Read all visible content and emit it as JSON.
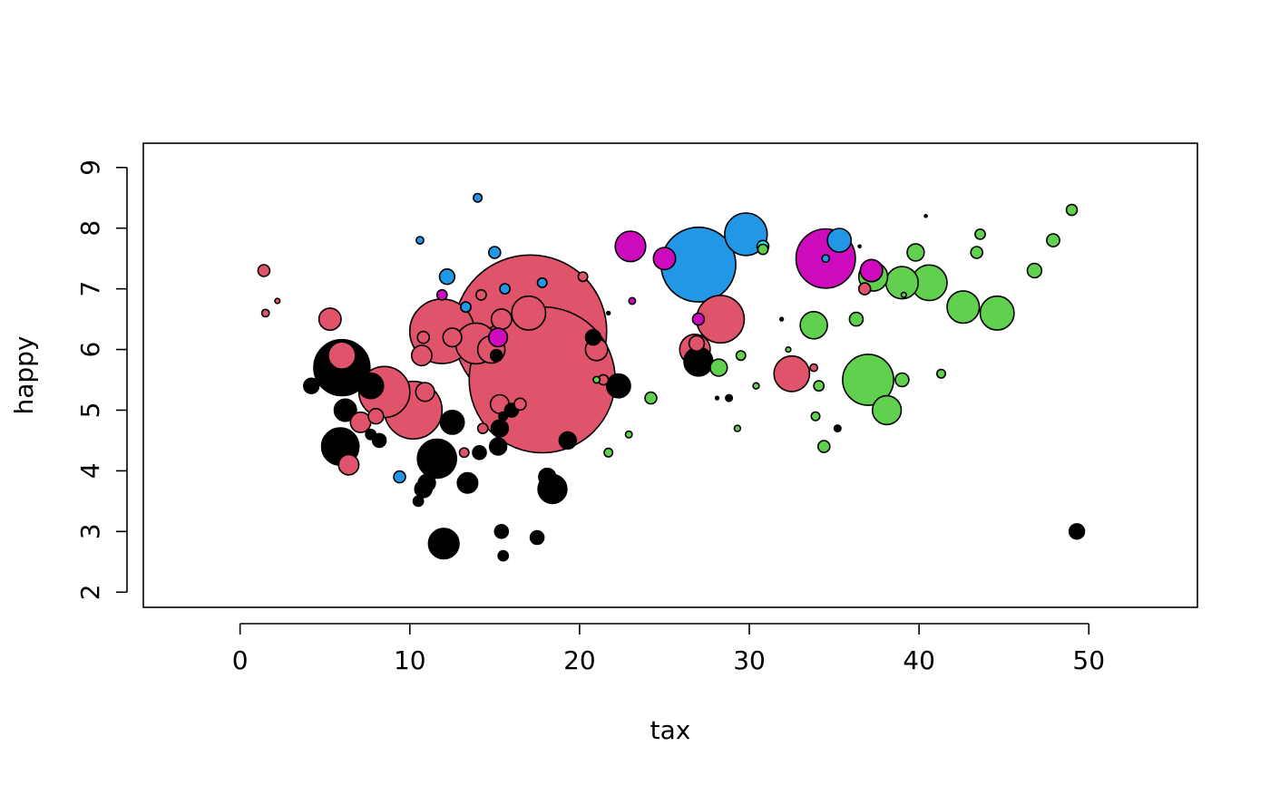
{
  "chart_data": {
    "type": "scatter",
    "title": "",
    "xlabel": "tax",
    "ylabel": "happy",
    "xlim": [
      -5.7,
      56.4
    ],
    "ylim": [
      1.75,
      9.4
    ],
    "xticks": [
      0,
      10,
      20,
      30,
      40,
      50
    ],
    "yticks": [
      2,
      3,
      4,
      5,
      6,
      7,
      8,
      9
    ],
    "grid": false,
    "legend": "none",
    "colors": {
      "black": "#000000",
      "red": "#DF536B",
      "green": "#61D04F",
      "blue": "#2297E6",
      "magenta": "#CD0BBC",
      "cyan": "#28E2E5"
    },
    "size_unit": "bubble radius in tax units",
    "points": [
      {
        "x": 1.4,
        "y": 7.3,
        "r": 0.35,
        "color": "red"
      },
      {
        "x": 2.2,
        "y": 6.8,
        "r": 0.15,
        "color": "red"
      },
      {
        "x": 1.5,
        "y": 6.6,
        "r": 0.22,
        "color": "red"
      },
      {
        "x": 5.3,
        "y": 6.5,
        "r": 0.65,
        "color": "red"
      },
      {
        "x": 6.0,
        "y": 5.9,
        "r": 0.8,
        "color": "red"
      },
      {
        "x": 8.5,
        "y": 5.3,
        "r": 1.5,
        "color": "red"
      },
      {
        "x": 10.2,
        "y": 5.0,
        "r": 1.7,
        "color": "red"
      },
      {
        "x": 10.9,
        "y": 5.3,
        "r": 0.55,
        "color": "red"
      },
      {
        "x": 7.1,
        "y": 4.8,
        "r": 0.6,
        "color": "red"
      },
      {
        "x": 8.0,
        "y": 4.9,
        "r": 0.45,
        "color": "red"
      },
      {
        "x": 6.4,
        "y": 4.1,
        "r": 0.6,
        "color": "red"
      },
      {
        "x": 10.7,
        "y": 5.9,
        "r": 0.6,
        "color": "red"
      },
      {
        "x": 10.8,
        "y": 6.2,
        "r": 0.35,
        "color": "red"
      },
      {
        "x": 11.9,
        "y": 6.3,
        "r": 1.9,
        "color": "red"
      },
      {
        "x": 12.5,
        "y": 6.2,
        "r": 0.55,
        "color": "red"
      },
      {
        "x": 13.9,
        "y": 6.1,
        "r": 1.2,
        "color": "red"
      },
      {
        "x": 14.8,
        "y": 6.0,
        "r": 0.8,
        "color": "red"
      },
      {
        "x": 14.2,
        "y": 6.9,
        "r": 0.3,
        "color": "red"
      },
      {
        "x": 15.4,
        "y": 6.5,
        "r": 0.6,
        "color": "red"
      },
      {
        "x": 17.1,
        "y": 6.3,
        "r": 4.5,
        "color": "red"
      },
      {
        "x": 17.8,
        "y": 5.5,
        "r": 4.3,
        "color": "red"
      },
      {
        "x": 17.0,
        "y": 6.6,
        "r": 1.0,
        "color": "red"
      },
      {
        "x": 15.3,
        "y": 5.1,
        "r": 0.55,
        "color": "red"
      },
      {
        "x": 16.5,
        "y": 5.1,
        "r": 0.35,
        "color": "red"
      },
      {
        "x": 14.3,
        "y": 4.7,
        "r": 0.3,
        "color": "red"
      },
      {
        "x": 13.2,
        "y": 4.3,
        "r": 0.28,
        "color": "red"
      },
      {
        "x": 20.2,
        "y": 7.2,
        "r": 0.28,
        "color": "red"
      },
      {
        "x": 21.0,
        "y": 6.0,
        "r": 0.65,
        "color": "red"
      },
      {
        "x": 21.4,
        "y": 5.5,
        "r": 0.3,
        "color": "red"
      },
      {
        "x": 26.8,
        "y": 6.0,
        "r": 0.9,
        "color": "red"
      },
      {
        "x": 26.9,
        "y": 6.1,
        "r": 0.45,
        "color": "red"
      },
      {
        "x": 28.3,
        "y": 6.5,
        "r": 1.4,
        "color": "red"
      },
      {
        "x": 32.5,
        "y": 5.6,
        "r": 1.05,
        "color": "red"
      },
      {
        "x": 33.8,
        "y": 5.7,
        "r": 0.22,
        "color": "red"
      },
      {
        "x": 36.8,
        "y": 7.0,
        "r": 0.35,
        "color": "red"
      },
      {
        "x": 4.2,
        "y": 5.4,
        "r": 0.45,
        "color": "black"
      },
      {
        "x": 6.0,
        "y": 5.7,
        "r": 1.65,
        "color": "black"
      },
      {
        "x": 6.2,
        "y": 5.0,
        "r": 0.65,
        "color": "black"
      },
      {
        "x": 7.7,
        "y": 5.4,
        "r": 0.75,
        "color": "black"
      },
      {
        "x": 5.9,
        "y": 4.4,
        "r": 1.1,
        "color": "black"
      },
      {
        "x": 7.7,
        "y": 4.6,
        "r": 0.3,
        "color": "black"
      },
      {
        "x": 8.2,
        "y": 4.5,
        "r": 0.4,
        "color": "black"
      },
      {
        "x": 12.5,
        "y": 4.8,
        "r": 0.7,
        "color": "black"
      },
      {
        "x": 11.6,
        "y": 4.2,
        "r": 1.15,
        "color": "black"
      },
      {
        "x": 11.0,
        "y": 3.8,
        "r": 0.5,
        "color": "black"
      },
      {
        "x": 10.8,
        "y": 3.7,
        "r": 0.5,
        "color": "black"
      },
      {
        "x": 10.5,
        "y": 3.5,
        "r": 0.3,
        "color": "black"
      },
      {
        "x": 13.4,
        "y": 3.8,
        "r": 0.6,
        "color": "black"
      },
      {
        "x": 14.1,
        "y": 4.3,
        "r": 0.4,
        "color": "black"
      },
      {
        "x": 15.2,
        "y": 4.4,
        "r": 0.5,
        "color": "black"
      },
      {
        "x": 15.3,
        "y": 4.7,
        "r": 0.5,
        "color": "black"
      },
      {
        "x": 15.5,
        "y": 4.9,
        "r": 0.25,
        "color": "black"
      },
      {
        "x": 16.0,
        "y": 5.0,
        "r": 0.4,
        "color": "black"
      },
      {
        "x": 15.1,
        "y": 5.9,
        "r": 0.35,
        "color": "black"
      },
      {
        "x": 12.0,
        "y": 2.8,
        "r": 0.9,
        "color": "black"
      },
      {
        "x": 15.4,
        "y": 3.0,
        "r": 0.4,
        "color": "black"
      },
      {
        "x": 15.5,
        "y": 2.6,
        "r": 0.3,
        "color": "black"
      },
      {
        "x": 17.5,
        "y": 2.9,
        "r": 0.4,
        "color": "black"
      },
      {
        "x": 18.1,
        "y": 3.9,
        "r": 0.5,
        "color": "black"
      },
      {
        "x": 18.4,
        "y": 3.7,
        "r": 0.85,
        "color": "black"
      },
      {
        "x": 19.3,
        "y": 4.5,
        "r": 0.5,
        "color": "black"
      },
      {
        "x": 20.8,
        "y": 6.2,
        "r": 0.45,
        "color": "black"
      },
      {
        "x": 22.3,
        "y": 5.4,
        "r": 0.7,
        "color": "black"
      },
      {
        "x": 21.7,
        "y": 6.6,
        "r": 0.1,
        "color": "black"
      },
      {
        "x": 27.0,
        "y": 5.8,
        "r": 0.85,
        "color": "black"
      },
      {
        "x": 28.1,
        "y": 5.2,
        "r": 0.1,
        "color": "black"
      },
      {
        "x": 28.8,
        "y": 5.2,
        "r": 0.2,
        "color": "black"
      },
      {
        "x": 31.9,
        "y": 6.5,
        "r": 0.1,
        "color": "black"
      },
      {
        "x": 35.2,
        "y": 4.7,
        "r": 0.2,
        "color": "black"
      },
      {
        "x": 36.5,
        "y": 7.7,
        "r": 0.08,
        "color": "black"
      },
      {
        "x": 40.4,
        "y": 8.2,
        "r": 0.08,
        "color": "black"
      },
      {
        "x": 49.3,
        "y": 3.0,
        "r": 0.45,
        "color": "black"
      },
      {
        "x": 11.9,
        "y": 6.9,
        "r": 0.3,
        "color": "magenta"
      },
      {
        "x": 15.2,
        "y": 6.2,
        "r": 0.55,
        "color": "magenta"
      },
      {
        "x": 23.0,
        "y": 7.7,
        "r": 0.9,
        "color": "magenta"
      },
      {
        "x": 23.1,
        "y": 6.8,
        "r": 0.2,
        "color": "magenta"
      },
      {
        "x": 25.0,
        "y": 7.5,
        "r": 0.65,
        "color": "magenta"
      },
      {
        "x": 27.0,
        "y": 6.5,
        "r": 0.35,
        "color": "magenta"
      },
      {
        "x": 34.5,
        "y": 7.5,
        "r": 1.75,
        "color": "magenta"
      },
      {
        "x": 37.2,
        "y": 7.3,
        "r": 0.65,
        "color": "magenta"
      },
      {
        "x": 14.0,
        "y": 8.5,
        "r": 0.25,
        "color": "blue"
      },
      {
        "x": 10.6,
        "y": 7.8,
        "r": 0.22,
        "color": "blue"
      },
      {
        "x": 12.2,
        "y": 7.2,
        "r": 0.45,
        "color": "blue"
      },
      {
        "x": 15.0,
        "y": 7.6,
        "r": 0.35,
        "color": "blue"
      },
      {
        "x": 15.6,
        "y": 7.0,
        "r": 0.3,
        "color": "blue"
      },
      {
        "x": 13.3,
        "y": 6.7,
        "r": 0.3,
        "color": "blue"
      },
      {
        "x": 17.8,
        "y": 7.1,
        "r": 0.28,
        "color": "blue"
      },
      {
        "x": 9.4,
        "y": 3.9,
        "r": 0.35,
        "color": "blue"
      },
      {
        "x": 27.0,
        "y": 7.4,
        "r": 2.2,
        "color": "blue"
      },
      {
        "x": 29.8,
        "y": 7.9,
        "r": 1.25,
        "color": "blue"
      },
      {
        "x": 35.3,
        "y": 7.8,
        "r": 0.7,
        "color": "blue"
      },
      {
        "x": 34.5,
        "y": 7.5,
        "r": 0.22,
        "color": "blue"
      },
      {
        "x": 30.8,
        "y": 7.7,
        "r": 0.35,
        "color": "cyan"
      },
      {
        "x": 21.7,
        "y": 4.3,
        "r": 0.25,
        "color": "green"
      },
      {
        "x": 22.9,
        "y": 4.6,
        "r": 0.2,
        "color": "green"
      },
      {
        "x": 24.2,
        "y": 5.2,
        "r": 0.35,
        "color": "green"
      },
      {
        "x": 21.0,
        "y": 5.5,
        "r": 0.2,
        "color": "green"
      },
      {
        "x": 28.2,
        "y": 5.7,
        "r": 0.5,
        "color": "green"
      },
      {
        "x": 29.5,
        "y": 5.9,
        "r": 0.28,
        "color": "green"
      },
      {
        "x": 30.4,
        "y": 5.4,
        "r": 0.18,
        "color": "green"
      },
      {
        "x": 29.3,
        "y": 4.7,
        "r": 0.18,
        "color": "green"
      },
      {
        "x": 30.8,
        "y": 7.65,
        "r": 0.3,
        "color": "green"
      },
      {
        "x": 32.3,
        "y": 6.0,
        "r": 0.15,
        "color": "green"
      },
      {
        "x": 33.8,
        "y": 6.4,
        "r": 0.8,
        "color": "green"
      },
      {
        "x": 34.1,
        "y": 5.4,
        "r": 0.3,
        "color": "green"
      },
      {
        "x": 33.9,
        "y": 4.9,
        "r": 0.25,
        "color": "green"
      },
      {
        "x": 34.4,
        "y": 4.4,
        "r": 0.35,
        "color": "green"
      },
      {
        "x": 36.3,
        "y": 6.5,
        "r": 0.4,
        "color": "green"
      },
      {
        "x": 37.0,
        "y": 5.5,
        "r": 1.5,
        "color": "green"
      },
      {
        "x": 37.3,
        "y": 7.2,
        "r": 0.85,
        "color": "green"
      },
      {
        "x": 38.1,
        "y": 5.0,
        "r": 0.85,
        "color": "green"
      },
      {
        "x": 39.0,
        "y": 5.5,
        "r": 0.4,
        "color": "green"
      },
      {
        "x": 39.1,
        "y": 6.9,
        "r": 0.15,
        "color": "green"
      },
      {
        "x": 39.0,
        "y": 7.1,
        "r": 0.95,
        "color": "green"
      },
      {
        "x": 39.8,
        "y": 7.6,
        "r": 0.5,
        "color": "green"
      },
      {
        "x": 40.6,
        "y": 7.1,
        "r": 1.05,
        "color": "green"
      },
      {
        "x": 41.3,
        "y": 5.6,
        "r": 0.25,
        "color": "green"
      },
      {
        "x": 42.6,
        "y": 6.7,
        "r": 0.95,
        "color": "green"
      },
      {
        "x": 43.4,
        "y": 7.6,
        "r": 0.35,
        "color": "green"
      },
      {
        "x": 43.6,
        "y": 7.9,
        "r": 0.3,
        "color": "green"
      },
      {
        "x": 44.6,
        "y": 6.6,
        "r": 1.0,
        "color": "green"
      },
      {
        "x": 46.8,
        "y": 7.3,
        "r": 0.42,
        "color": "green"
      },
      {
        "x": 47.9,
        "y": 7.8,
        "r": 0.38,
        "color": "green"
      },
      {
        "x": 49.0,
        "y": 8.3,
        "r": 0.32,
        "color": "green"
      }
    ]
  }
}
